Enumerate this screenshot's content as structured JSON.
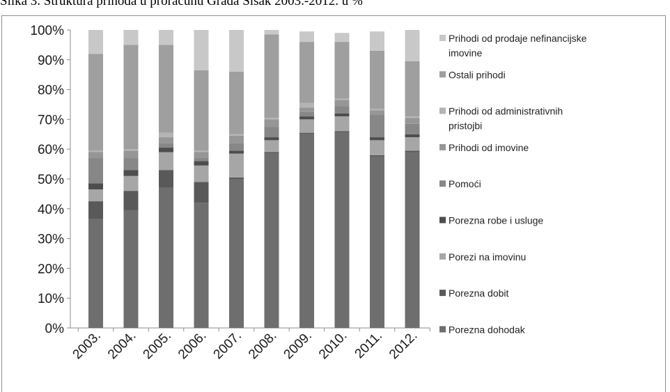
{
  "caption": "Slika 3. Struktura prihoda u proračunu Grada Sisak 2003.-2012. u %",
  "chart_data": {
    "type": "bar",
    "stacked": true,
    "categories": [
      "2003.",
      "2004.",
      "2005.",
      "2006.",
      "2007.",
      "2008.",
      "2009.",
      "2010.",
      "2011.",
      "2012."
    ],
    "yticks": [
      "0%",
      "10%",
      "20%",
      "30%",
      "40%",
      "50%",
      "60%",
      "70%",
      "80%",
      "90%",
      "100%"
    ],
    "ylim": [
      0,
      100
    ],
    "grid": false,
    "legend_position": "right",
    "series": [
      {
        "name": "Porezna dohodak",
        "color": "#6e6e6e",
        "values": [
          36.5,
          39.5,
          47,
          42,
          50,
          58.5,
          65,
          65.5,
          57.5,
          59
        ]
      },
      {
        "name": "Porezna dobit",
        "color": "#595959",
        "values": [
          6,
          6.5,
          6,
          7,
          0.5,
          0.5,
          0.5,
          0.5,
          0.5,
          0.5
        ]
      },
      {
        "name": "Porezi na imovinu",
        "color": "#a6a6a6",
        "values": [
          4,
          5,
          6,
          5.5,
          8,
          4,
          4.5,
          5,
          5,
          4.5
        ]
      },
      {
        "name": "Porezna robe i usluge",
        "color": "#4d4d4d",
        "values": [
          2,
          2,
          1.5,
          1.5,
          1,
          1,
          1,
          1,
          1,
          1
        ]
      },
      {
        "name": "Pomoći",
        "color": "#878787",
        "values": [
          8.5,
          4,
          1.5,
          1,
          2.5,
          3.5,
          1.5,
          2.5,
          7.5,
          3.5
        ]
      },
      {
        "name": "Prihodi od imovine",
        "color": "#969696",
        "values": [
          2,
          2.5,
          2,
          2,
          2.5,
          2.5,
          1.5,
          2,
          1.5,
          2
        ]
      },
      {
        "name": "Prihodi od administrativnih pristojbi",
        "color": "#b4b4b4",
        "values": [
          0.5,
          0.5,
          1.5,
          0.5,
          0.5,
          0.5,
          1.5,
          0.5,
          0.5,
          0.5
        ]
      },
      {
        "name": "Ostali prihodi",
        "color": "#9f9f9f",
        "values": [
          32.5,
          35,
          29.5,
          27,
          21,
          28,
          20.5,
          19,
          19.5,
          18.5
        ]
      },
      {
        "name": "Prihodi od prodaje nefinancijske imovine",
        "color": "#c8c8c8",
        "values": [
          8,
          5,
          5,
          13.5,
          14,
          1.5,
          3.5,
          3,
          6.5,
          10.5
        ]
      }
    ]
  }
}
